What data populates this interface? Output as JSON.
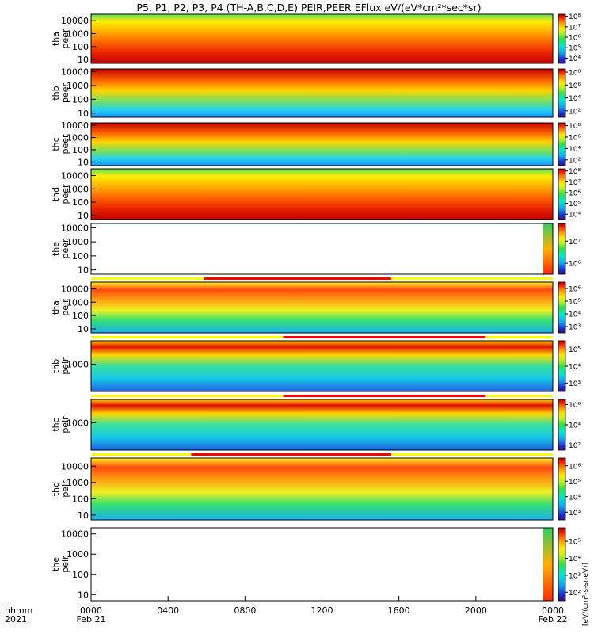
{
  "title": "P5, P1, P2, P3, P4 (TH-A,B,C,D,E) PEIR,PEER EFlux eV/(eV*cm²*sec*sr)",
  "chart_data": {
    "type": "heatmap",
    "time_labels": [
      "0000",
      "0400",
      "0800",
      "1200",
      "1600",
      "2000",
      "0000"
    ],
    "time_hours": [
      0,
      4,
      8,
      12,
      16,
      20,
      24
    ],
    "date_labels": [
      "Feb 21",
      "Feb 22"
    ],
    "row_label_hhmm": "hhmm",
    "row_label_year": "2021",
    "colorbar_side_label": "[eV/(cm²-s-sr-eV)]",
    "panels": [
      {
        "probe": "tha",
        "species": "peer",
        "ylabel_top": "tha",
        "ylabel_bottom": "peer",
        "ylog_range": [
          0.7,
          4.5
        ],
        "yticks": [
          "10",
          "100",
          "1000",
          "10000"
        ],
        "ytick_exps": [
          1,
          2,
          3,
          4
        ],
        "cbar_ticks": [
          "10⁴",
          "10⁵",
          "10⁶",
          "10⁷",
          "10⁸"
        ],
        "cbar_exps": [
          4,
          5,
          6,
          7,
          8
        ],
        "cbar_range": [
          3.5,
          8.2
        ],
        "bar": null
      },
      {
        "probe": "thb",
        "species": "peer",
        "ylabel_top": "thb",
        "ylabel_bottom": "peer",
        "ylog_range": [
          0.7,
          4.2
        ],
        "yticks": [
          "10",
          "100",
          "1000",
          "10000"
        ],
        "ytick_exps": [
          1,
          2,
          3,
          4
        ],
        "cbar_ticks": [
          "10²",
          "10⁴",
          "10⁶",
          "10⁸"
        ],
        "cbar_exps": [
          2,
          4,
          6,
          8
        ],
        "cbar_range": [
          1,
          8.5
        ],
        "bar": null
      },
      {
        "probe": "thc",
        "species": "peer",
        "ylabel_top": "thc",
        "ylabel_bottom": "peer",
        "ylog_range": [
          0.7,
          4.2
        ],
        "yticks": [
          "10",
          "100",
          "1000",
          "10000"
        ],
        "ytick_exps": [
          1,
          2,
          3,
          4
        ],
        "cbar_ticks": [
          "10²",
          "10⁴",
          "10⁶",
          "10⁸"
        ],
        "cbar_exps": [
          2,
          4,
          6,
          8
        ],
        "cbar_range": [
          1,
          8.5
        ],
        "bar": null
      },
      {
        "probe": "thd",
        "species": "peer",
        "ylabel_top": "thd",
        "ylabel_bottom": "peer",
        "ylog_range": [
          0.7,
          4.5
        ],
        "yticks": [
          "10",
          "100",
          "1000",
          "10000"
        ],
        "ytick_exps": [
          1,
          2,
          3,
          4
        ],
        "cbar_ticks": [
          "10⁴",
          "10⁵",
          "10⁶",
          "10⁷",
          "10⁸"
        ],
        "cbar_exps": [
          4,
          5,
          6,
          7,
          8
        ],
        "cbar_range": [
          3.5,
          8.2
        ],
        "bar": null
      },
      {
        "probe": "the",
        "species": "peer",
        "ylabel_top": "the",
        "ylabel_bottom": "peer",
        "ylog_range": [
          0.7,
          4.3
        ],
        "yticks": [
          "10",
          "100",
          "1000",
          "10000"
        ],
        "ytick_exps": [
          1,
          2,
          3,
          4
        ],
        "cbar_ticks": [
          "10⁶",
          "10⁷"
        ],
        "cbar_exps": [
          6,
          7
        ],
        "cbar_range": [
          5.5,
          7.8
        ],
        "bar": null
      },
      {
        "probe": "tha",
        "species": "peir",
        "ylabel_top": "tha",
        "ylabel_bottom": "peir",
        "ylog_range": [
          0.7,
          4.5
        ],
        "yticks": [
          "10",
          "100",
          "1000",
          "10000"
        ],
        "ytick_exps": [
          1,
          2,
          3,
          4
        ],
        "cbar_ticks": [
          "10³",
          "10⁴",
          "10⁵",
          "10⁶"
        ],
        "cbar_exps": [
          3,
          4,
          5,
          6
        ],
        "cbar_range": [
          2.5,
          6.5
        ],
        "bar": {
          "start_hour": 5.85,
          "end_hour": 15.6
        }
      },
      {
        "probe": "thb",
        "species": "peir",
        "ylabel_top": "thb",
        "ylabel_bottom": "peir",
        "ylog_range": [
          2.3,
          3.6
        ],
        "yticks": [
          "1000"
        ],
        "ytick_exps": [
          3
        ],
        "cbar_ticks": [
          "10³",
          "10⁴",
          "10⁵"
        ],
        "cbar_exps": [
          3,
          4,
          5
        ],
        "cbar_range": [
          2.5,
          5.5
        ],
        "bar": {
          "start_hour": 9.98,
          "end_hour": 20.5
        }
      },
      {
        "probe": "thc",
        "species": "peir",
        "ylabel_top": "thc",
        "ylabel_bottom": "peir",
        "ylog_range": [
          2.3,
          3.6
        ],
        "yticks": [
          "1000"
        ],
        "ytick_exps": [
          3
        ],
        "cbar_ticks": [
          "10²",
          "10⁴",
          "10⁶"
        ],
        "cbar_exps": [
          2,
          4,
          6
        ],
        "cbar_range": [
          1.5,
          6.5
        ],
        "bar": {
          "start_hour": 9.98,
          "end_hour": 20.5
        }
      },
      {
        "probe": "thd",
        "species": "peir",
        "ylabel_top": "thd",
        "ylabel_bottom": "peir",
        "ylog_range": [
          0.7,
          4.5
        ],
        "yticks": [
          "10",
          "100",
          "1000",
          "10000"
        ],
        "ytick_exps": [
          1,
          2,
          3,
          4
        ],
        "cbar_ticks": [
          "10³",
          "10⁴",
          "10⁵",
          "10⁶"
        ],
        "cbar_exps": [
          3,
          4,
          5,
          6
        ],
        "cbar_range": [
          2.5,
          6.5
        ],
        "bar": {
          "start_hour": 5.2,
          "end_hour": 15.6
        }
      },
      {
        "probe": "the",
        "species": "peir",
        "ylabel_top": "the",
        "ylabel_bottom": "peir",
        "ylog_range": [
          0.7,
          4.3
        ],
        "yticks": [
          "10",
          "100",
          "1000",
          "10000"
        ],
        "ytick_exps": [
          1,
          2,
          3,
          4
        ],
        "cbar_ticks": [
          "10²",
          "10³",
          "10⁴",
          "10⁵"
        ],
        "cbar_exps": [
          2,
          3,
          4,
          5
        ],
        "cbar_range": [
          1.5,
          5.8
        ],
        "bar": null
      }
    ]
  }
}
